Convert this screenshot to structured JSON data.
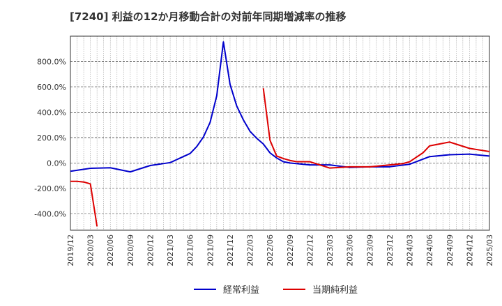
{
  "chart_data": {
    "type": "line",
    "title": "[7240]  利益の12か月移動合計の対前年同期増減率の推移",
    "xlabel": "",
    "ylabel": "",
    "ylim": [
      -530,
      1000
    ],
    "y_ticks": [
      -400,
      -200,
      0,
      200,
      400,
      600,
      800
    ],
    "y_tick_labels": [
      "-400.0%",
      "-200.0%",
      "0.0%",
      "200.0%",
      "400.0%",
      "600.0%",
      "800.0%"
    ],
    "x_tick_labels": [
      "2019/12",
      "2020/03",
      "2020/06",
      "2020/09",
      "2020/12",
      "2021/03",
      "2021/06",
      "2021/09",
      "2021/12",
      "2022/03",
      "2022/06",
      "2022/09",
      "2022/12",
      "2023/03",
      "2023/06",
      "2023/09",
      "2023/12",
      "2024/03",
      "2024/06",
      "2024/09",
      "2024/12",
      "2025/03"
    ],
    "grid": true,
    "legend_position": "bottom",
    "series": [
      {
        "name": "経常利益",
        "color": "#0000cc",
        "x": [
          0,
          3,
          6,
          9,
          12,
          15,
          18,
          19,
          20,
          21,
          22,
          23,
          24,
          25,
          26,
          27,
          28,
          29,
          30,
          31,
          32,
          33,
          36,
          39,
          42,
          45,
          48,
          51,
          54,
          57,
          60,
          63
        ],
        "values": [
          -65,
          -42,
          -38,
          -70,
          -20,
          3,
          75,
          130,
          205,
          320,
          530,
          955,
          620,
          450,
          340,
          250,
          195,
          150,
          80,
          40,
          10,
          0,
          -15,
          -15,
          -35,
          -30,
          -30,
          -10,
          50,
          65,
          70,
          55
        ]
      },
      {
        "name": "当期純利益",
        "color": "#dd0000",
        "x": [
          0,
          1,
          2,
          3,
          4
        ],
        "values": [
          -145,
          -145,
          -150,
          -165,
          -500
        ]
      },
      {
        "name": "当期純利益",
        "color": "#dd0000",
        "x": [
          29,
          30,
          31,
          32,
          33,
          34,
          36,
          39,
          42,
          45,
          48,
          50,
          51,
          53,
          54,
          57,
          60,
          63
        ],
        "values": [
          590,
          180,
          55,
          35,
          20,
          10,
          10,
          -40,
          -30,
          -30,
          -15,
          -5,
          10,
          80,
          135,
          165,
          115,
          90
        ]
      }
    ]
  }
}
